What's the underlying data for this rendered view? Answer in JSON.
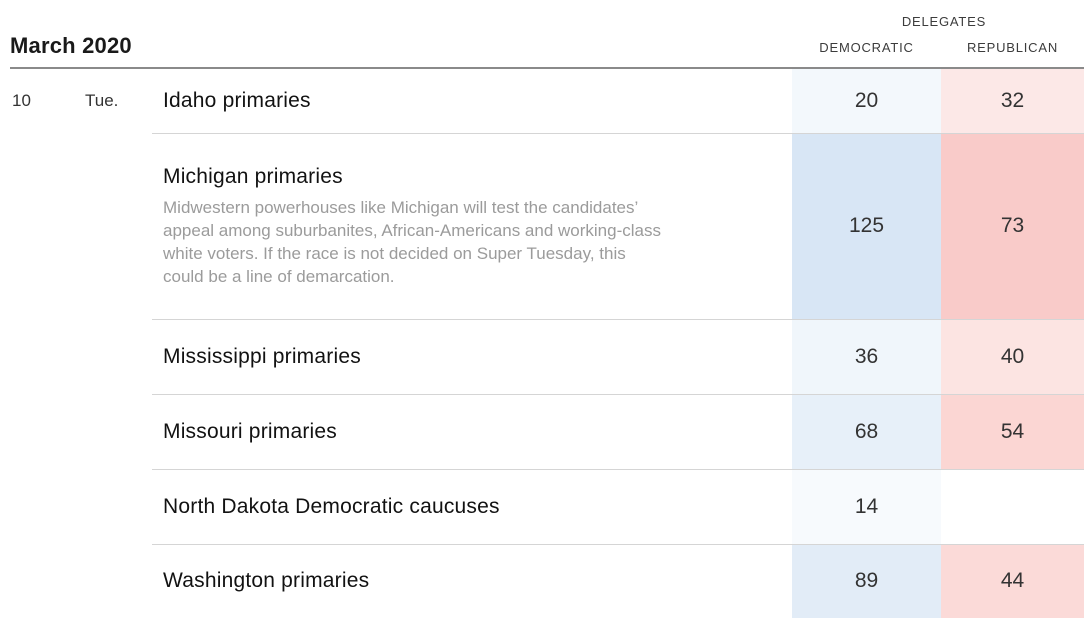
{
  "header": {
    "month_title": "March 2020",
    "delegates_label": "DELEGATES",
    "democratic_label": "DEMOCRATIC",
    "republican_label": "REPUBLICAN"
  },
  "colors": {
    "header_rule": "#8a8a8a",
    "row_rule": "#d5d5d5",
    "democratic_base": "#4a90d9",
    "republican_base": "#e57373"
  },
  "rows": [
    {
      "date": "10",
      "day": "Tue.",
      "title": "Idaho primaries",
      "description": "",
      "dem": "20",
      "rep": "32",
      "dem_bg": "#f3f8fc",
      "rep_bg": "#fce8e7"
    },
    {
      "date": "",
      "day": "",
      "title": "Michigan primaries",
      "description": "Midwestern powerhouses like Michigan will test the candidates’\nappeal among suburbanites, African-Americans and working-class\nwhite voters. If the race is not decided on Super Tuesday, this\ncould be a line of demarcation.",
      "dem": "125",
      "rep": "73",
      "dem_bg": "#d8e6f5",
      "rep_bg": "#f9cbc9"
    },
    {
      "date": "",
      "day": "",
      "title": "Mississippi primaries",
      "description": "",
      "dem": "36",
      "rep": "40",
      "dem_bg": "#f0f6fb",
      "rep_bg": "#fce4e2"
    },
    {
      "date": "",
      "day": "",
      "title": "Missouri primaries",
      "description": "",
      "dem": "68",
      "rep": "54",
      "dem_bg": "#e7f0f9",
      "rep_bg": "#fbd6d3"
    },
    {
      "date": "",
      "day": "",
      "title": "North Dakota Democratic caucuses",
      "description": "",
      "dem": "14",
      "rep": "",
      "dem_bg": "#f7fafd",
      "rep_bg": ""
    },
    {
      "date": "",
      "day": "",
      "title": "Washington primaries",
      "description": "",
      "dem": "89",
      "rep": "44",
      "dem_bg": "#e2ecf7",
      "rep_bg": "#fbdad8"
    }
  ]
}
